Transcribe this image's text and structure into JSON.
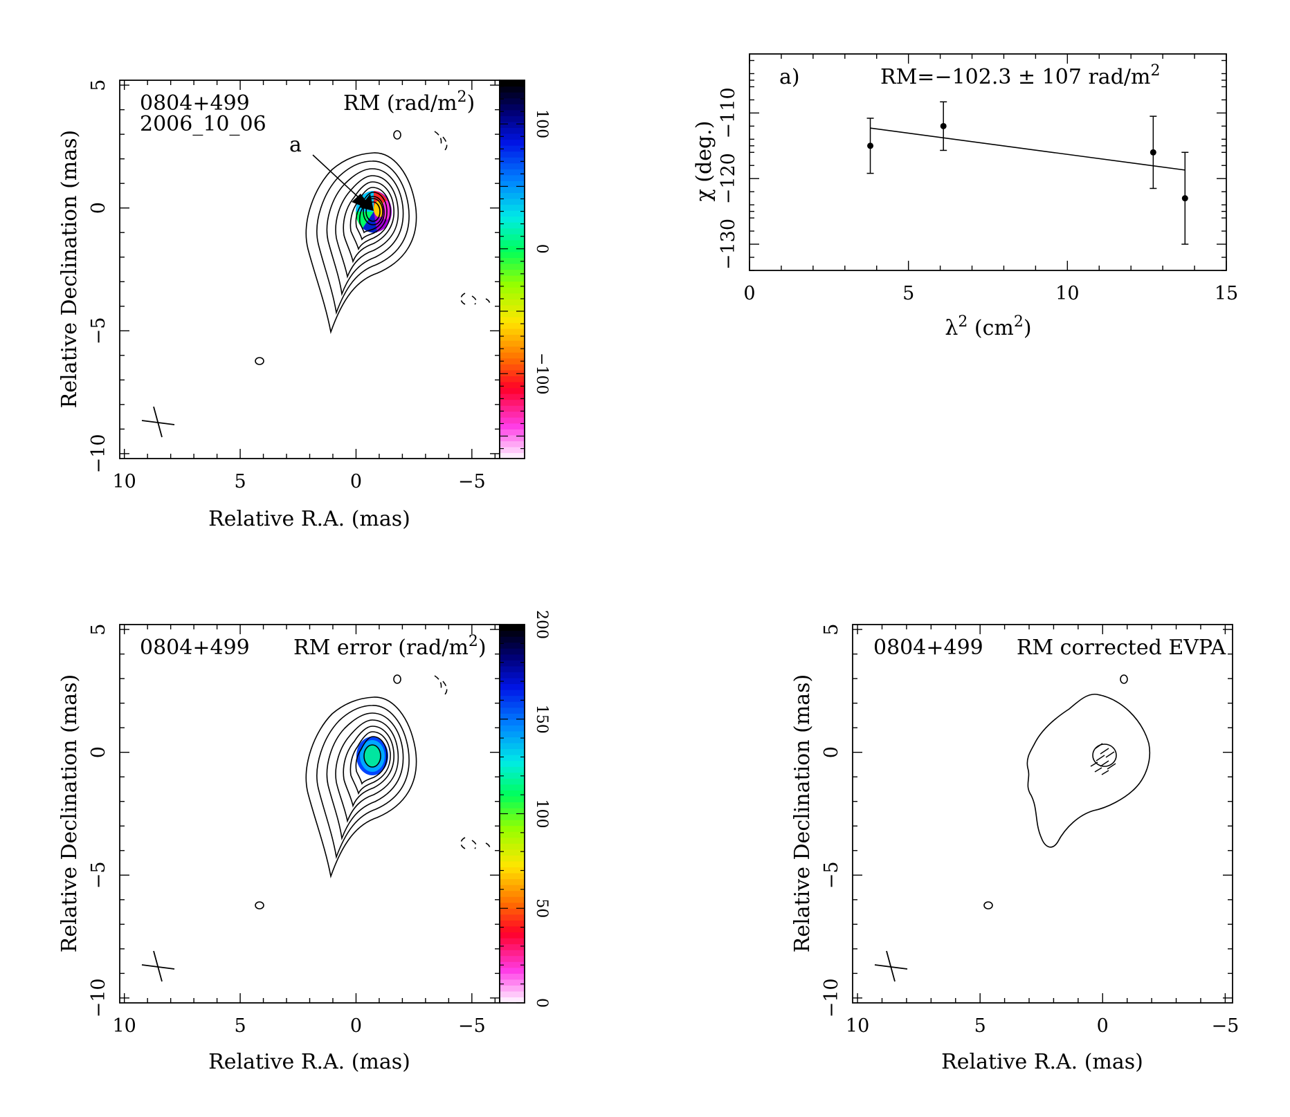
{
  "chart_data": [
    {
      "type": "heatmap",
      "panel": "rm-map",
      "labels": [
        "0804+499",
        "2006_10_06",
        "RM (rad/m",
        "2",
        ")"
      ],
      "annotation": "a",
      "xlabel": "Relative R.A. (mas)",
      "ylabel": "Relative Declination (mas)",
      "xlim": [
        10.2,
        -6.2
      ],
      "ylim": [
        -10.2,
        5.2
      ],
      "xticks": [
        "10",
        "5",
        "0",
        "−5"
      ],
      "yticks": [
        "−10",
        "−5",
        "0",
        "5"
      ],
      "colorbar": {
        "range": [
          -168,
          135
        ],
        "ticks": [
          "100",
          "0",
          "−100"
        ],
        "tick_values": [
          100,
          0,
          -100
        ]
      }
    },
    {
      "type": "scatter",
      "panel": "chi-vs-lambda2",
      "label": "a)",
      "rm_text": [
        "RM=−102.3 ± 107 rad/m",
        "2"
      ],
      "xlabel": [
        "λ",
        "2",
        " (cm",
        "2",
        ")"
      ],
      "ylabel": "χ (deg.)",
      "xlim": [
        0,
        15
      ],
      "ylim": [
        -134,
        -101
      ],
      "xticks": [
        "0",
        "5",
        "10",
        "15"
      ],
      "yticks": [
        "−130",
        "−120",
        "−110"
      ],
      "points": [
        {
          "x": 3.8,
          "y": -115.0,
          "err": 4.2
        },
        {
          "x": 6.1,
          "y": -112.0,
          "err": 3.7
        },
        {
          "x": 12.7,
          "y": -116.0,
          "err": 5.5
        },
        {
          "x": 13.7,
          "y": -123.0,
          "err": 7.0
        }
      ],
      "fit_line": {
        "x": [
          3.8,
          13.7
        ],
        "y": [
          -112.3,
          -118.7
        ]
      }
    },
    {
      "type": "heatmap",
      "panel": "rm-error-map",
      "labels": [
        "0804+499",
        "RM error (rad/m",
        "2",
        ")"
      ],
      "xlabel": "Relative R.A. (mas)",
      "ylabel": "Relative Declination (mas)",
      "xlim": [
        10.2,
        -6.2
      ],
      "ylim": [
        -10.2,
        5.2
      ],
      "xticks": [
        "10",
        "5",
        "0",
        "−5"
      ],
      "yticks": [
        "−10",
        "−5",
        "0",
        "5"
      ],
      "colorbar": {
        "range": [
          0,
          200
        ],
        "ticks": [
          "200",
          "150",
          "100",
          "50",
          "0"
        ],
        "tick_values": [
          200,
          150,
          100,
          50,
          0
        ]
      }
    },
    {
      "type": "contour",
      "panel": "evpa-map",
      "labels": [
        "0804+499",
        "RM corrected EVPA"
      ],
      "xlabel": "Relative R.A. (mas)",
      "ylabel": "Relative Declination (mas)",
      "xlim": [
        10.2,
        -5.3
      ],
      "ylim": [
        -10.2,
        5.2
      ],
      "xticks": [
        "10",
        "5",
        "0",
        "−5"
      ],
      "yticks": [
        "−10",
        "−5",
        "0",
        "5"
      ]
    }
  ],
  "colors": {
    "axis": "#000000",
    "background": "#ffffff"
  }
}
